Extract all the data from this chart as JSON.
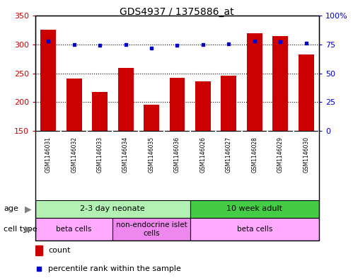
{
  "title": "GDS4937 / 1375886_at",
  "samples": [
    "GSM1146031",
    "GSM1146032",
    "GSM1146033",
    "GSM1146034",
    "GSM1146035",
    "GSM1146036",
    "GSM1146026",
    "GSM1146027",
    "GSM1146028",
    "GSM1146029",
    "GSM1146030"
  ],
  "counts": [
    325,
    241,
    217,
    259,
    196,
    242,
    236,
    246,
    319,
    315,
    282
  ],
  "percentiles": [
    78,
    75,
    74,
    75,
    72,
    74,
    75,
    75.5,
    78,
    77,
    76
  ],
  "bar_color": "#cc0000",
  "dot_color": "#0000cc",
  "ylim_left": [
    150,
    350
  ],
  "ylim_right": [
    0,
    100
  ],
  "yticks_left": [
    150,
    200,
    250,
    300,
    350
  ],
  "yticks_right": [
    0,
    25,
    50,
    75,
    100
  ],
  "grid_vals": [
    200,
    250,
    300
  ],
  "age_groups": [
    {
      "label": "2-3 day neonate",
      "start": 0,
      "end": 6,
      "color": "#b3f0b3"
    },
    {
      "label": "10 week adult",
      "start": 6,
      "end": 11,
      "color": "#44cc44"
    }
  ],
  "cell_type_groups": [
    {
      "label": "beta cells",
      "start": 0,
      "end": 3,
      "color": "#ffaaff"
    },
    {
      "label": "non-endocrine islet\ncells",
      "start": 3,
      "end": 6,
      "color": "#ee88ee"
    },
    {
      "label": "beta cells",
      "start": 6,
      "end": 11,
      "color": "#ffaaff"
    }
  ],
  "legend_count_color": "#cc0000",
  "legend_dot_color": "#0000cc",
  "label_bg": "#c8c8c8",
  "border_color": "#000000"
}
